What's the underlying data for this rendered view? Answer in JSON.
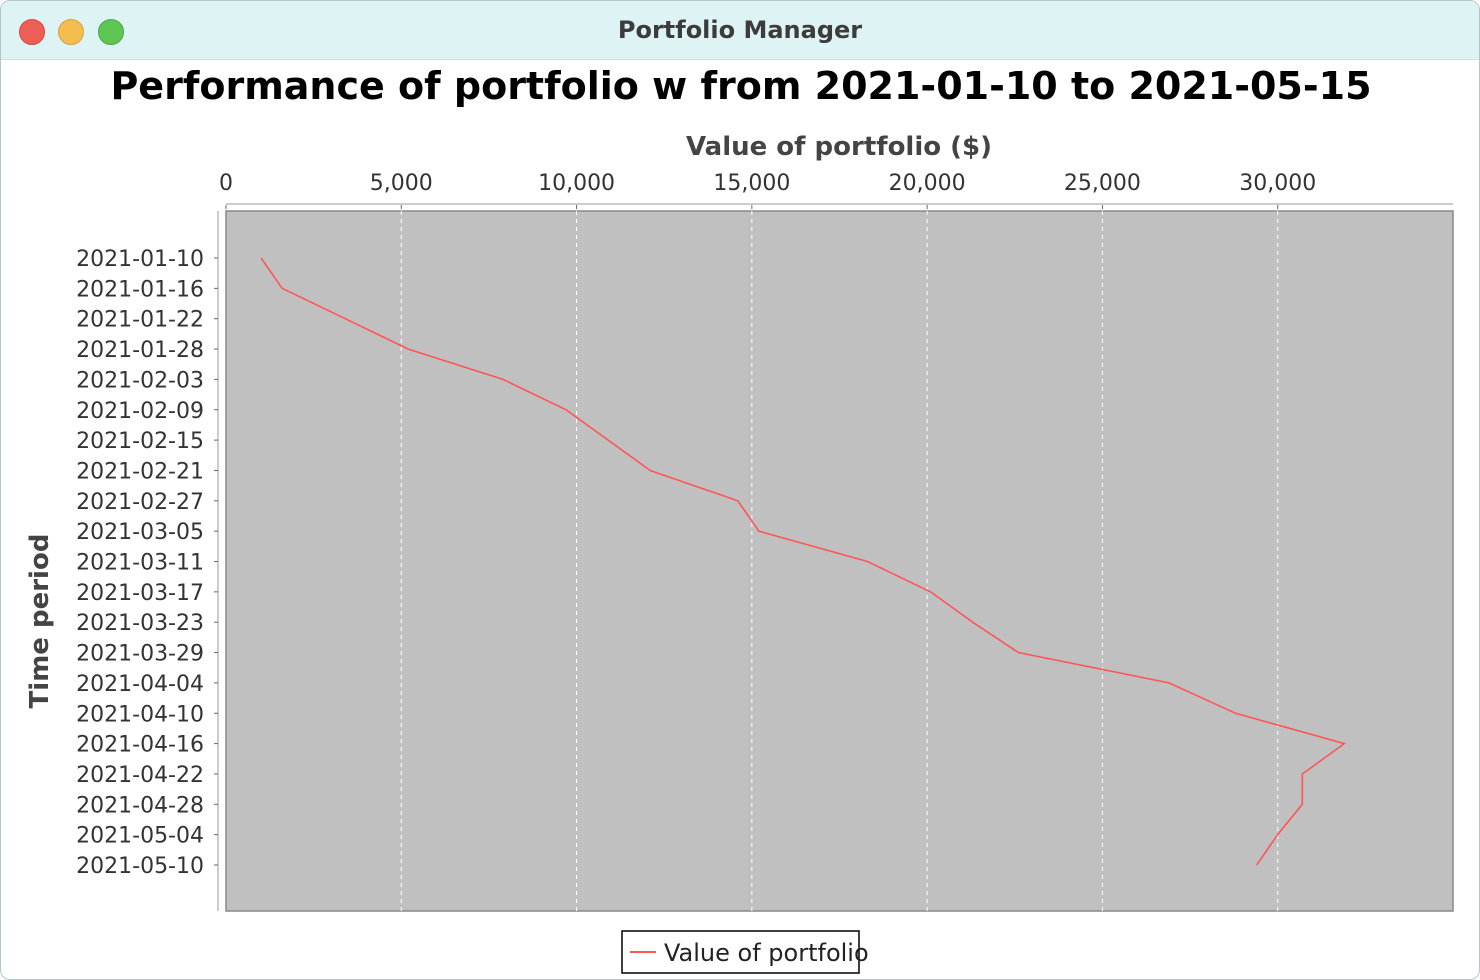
{
  "window": {
    "title": "Portfolio Manager"
  },
  "colors": {
    "series_line": "#ff5555",
    "plot_background": "#c0c0c0",
    "gridline": "#ffffff",
    "titlebar": "#ddf3f4"
  },
  "chart_data": {
    "type": "line",
    "title": "Performance of portfolio w from 2021-01-10 to 2021-05-15",
    "xlabel": "Value of portfolio ($)",
    "ylabel": "Time period",
    "orientation": "horizontal",
    "xlim": [
      0,
      35000
    ],
    "x_ticks": [
      0,
      5000,
      10000,
      15000,
      20000,
      25000,
      30000
    ],
    "x_tick_labels": [
      "0",
      "5,000",
      "10,000",
      "15,000",
      "20,000",
      "25,000",
      "30,000"
    ],
    "x_axis_position": "top",
    "grid": true,
    "legend": "bottom-center",
    "categories": [
      "2021-01-10",
      "2021-01-16",
      "2021-01-22",
      "2021-01-28",
      "2021-02-03",
      "2021-02-09",
      "2021-02-15",
      "2021-02-21",
      "2021-02-27",
      "2021-03-05",
      "2021-03-11",
      "2021-03-17",
      "2021-03-23",
      "2021-03-29",
      "2021-04-04",
      "2021-04-10",
      "2021-04-16",
      "2021-04-22",
      "2021-04-28",
      "2021-05-04",
      "2021-05-10"
    ],
    "series": [
      {
        "name": "Value of portfolio",
        "values": [
          1000,
          1600,
          3400,
          5200,
          7900,
          9700,
          10900,
          12100,
          14600,
          15200,
          18300,
          20100,
          21300,
          22600,
          26900,
          28800,
          31900,
          30700,
          30700,
          30000,
          29400
        ]
      }
    ]
  }
}
